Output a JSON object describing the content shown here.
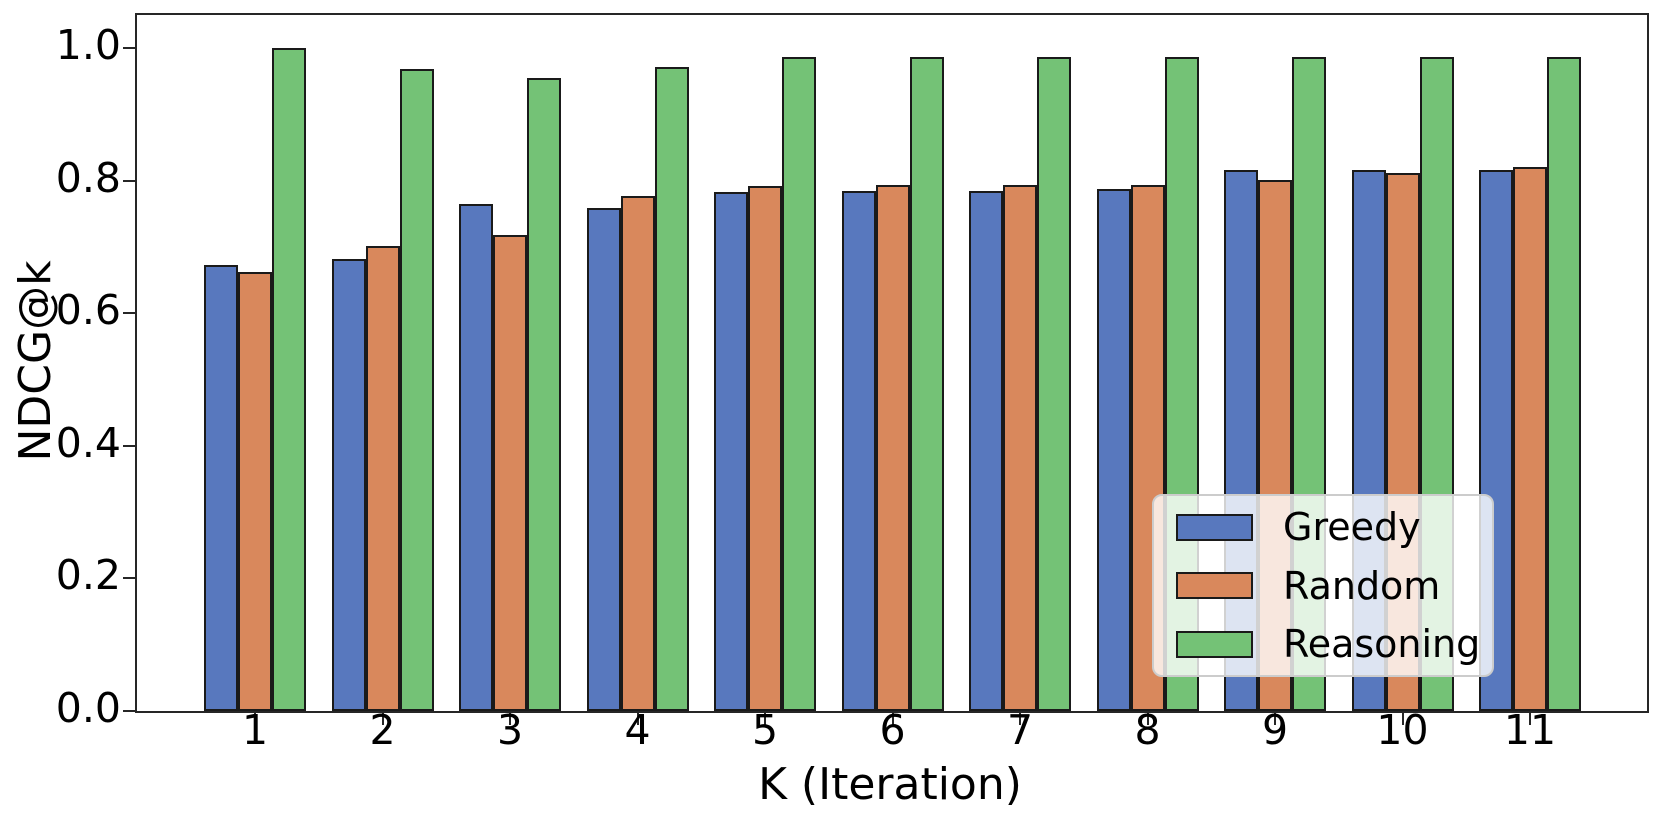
{
  "chart_data": {
    "type": "bar",
    "title": "",
    "xlabel": "K (Iteration)",
    "ylabel": "NDCG@k",
    "categories": [
      "1",
      "2",
      "3",
      "4",
      "5",
      "6",
      "7",
      "8",
      "9",
      "10",
      "11"
    ],
    "ylim": [
      0.0,
      1.0
    ],
    "ytick_labels": [
      "0.0",
      "0.2",
      "0.4",
      "0.6",
      "0.8",
      "1.0"
    ],
    "grid": false,
    "legend_position": "lower-right",
    "bar_edge_color": "#1a1a1a",
    "series": [
      {
        "name": "Greedy",
        "color": "#5878be",
        "values": [
          0.673,
          0.682,
          0.764,
          0.759,
          0.783,
          0.784,
          0.784,
          0.788,
          0.816,
          0.816,
          0.816
        ]
      },
      {
        "name": "Random",
        "color": "#d9885c",
        "values": [
          0.662,
          0.701,
          0.718,
          0.777,
          0.792,
          0.793,
          0.793,
          0.793,
          0.801,
          0.812,
          0.82
        ]
      },
      {
        "name": "Reasoning",
        "color": "#74c276",
        "values": [
          1.0,
          0.969,
          0.955,
          0.971,
          0.987,
          0.987,
          0.987,
          0.987,
          0.987,
          0.987,
          0.987
        ]
      }
    ]
  }
}
